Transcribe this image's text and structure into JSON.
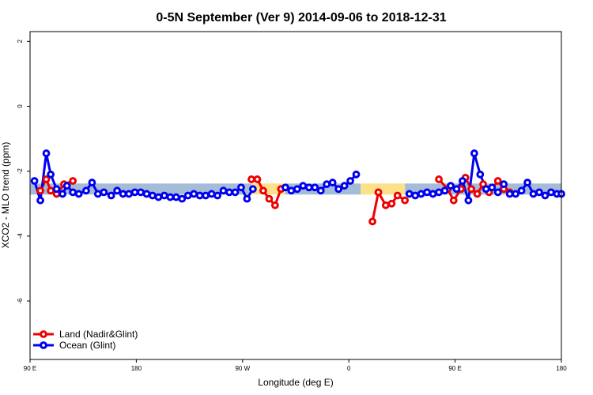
{
  "chart_data": {
    "type": "line",
    "title": "0-5N September (Ver 9)   2014-09-06 to 2018-12-31",
    "xlabel": "Longitude (deg E)",
    "ylabel": "XCO2 - MLO trend (ppm)",
    "xlim": [
      90,
      450
    ],
    "ylim": [
      -7.8,
      2.3
    ],
    "xticks": [
      {
        "value": 90,
        "label": "90 E"
      },
      {
        "value": 162,
        "label": "180"
      },
      {
        "value": 234,
        "label": "90 W"
      },
      {
        "value": 306,
        "label": "0"
      },
      {
        "value": 378,
        "label": "90 E"
      },
      {
        "value": 450,
        "label": "180"
      }
    ],
    "yticks": [
      {
        "value": 2,
        "label": "2"
      },
      {
        "value": 0,
        "label": "0"
      },
      {
        "value": -2,
        "label": "-2"
      },
      {
        "value": -4,
        "label": "-4"
      },
      {
        "value": -6,
        "label": "-6"
      }
    ],
    "grid": false,
    "legend": "bottom-left",
    "colors": {
      "land": "#ee0000",
      "ocean": "#0000ee",
      "band_ocean": "#a4bcd8",
      "band_land": "#fde08a"
    },
    "bands": [
      {
        "x0": 90,
        "x1": 240,
        "type": "ocean"
      },
      {
        "x0": 240,
        "x1": 263,
        "type": "land"
      },
      {
        "x0": 263,
        "x1": 314,
        "type": "ocean"
      },
      {
        "x0": 314,
        "x1": 344,
        "type": "land"
      },
      {
        "x0": 344,
        "x1": 450,
        "type": "ocean"
      }
    ],
    "band_range": [
      -2.72,
      -2.38
    ],
    "series": [
      {
        "name": "Land (Nadir&Glint)",
        "key": "land",
        "x": [
          97,
          101,
          104,
          108,
          113,
          119,
          240,
          244,
          248,
          252,
          256,
          260,
          322,
          326,
          331,
          335,
          339,
          344,
          367,
          373,
          377,
          382,
          385,
          389,
          393,
          397,
          401,
          407,
          411,
          415
        ],
        "y": [
          -2.6,
          -2.25,
          -2.6,
          -2.7,
          -2.4,
          -2.3,
          -2.25,
          -2.25,
          -2.6,
          -2.85,
          -3.05,
          -2.55,
          -3.55,
          -2.65,
          -3.05,
          -3.0,
          -2.75,
          -2.9,
          -2.25,
          -2.55,
          -2.9,
          -2.55,
          -2.2,
          -2.55,
          -2.7,
          -2.4,
          -2.65,
          -2.3,
          -2.55,
          -2.65
        ]
      },
      {
        "name": "Ocean (Glint)",
        "key": "ocean",
        "x": [
          93,
          97,
          101,
          104,
          108,
          112,
          115,
          119,
          123,
          128,
          132,
          136,
          140,
          145,
          149,
          153,
          157,
          161,
          165,
          169,
          173,
          177,
          181,
          185,
          189,
          193,
          197,
          201,
          205,
          209,
          213,
          217,
          221,
          225,
          229,
          233,
          237,
          241,
          263,
          267,
          271,
          275,
          279,
          283,
          287,
          291,
          295,
          299,
          303,
          307,
          311,
          347,
          351,
          355,
          359,
          363,
          367,
          371,
          375,
          379,
          383,
          387,
          391,
          395,
          399,
          403,
          407,
          411,
          415,
          419,
          423,
          427,
          431,
          435,
          439,
          443,
          447,
          450
        ],
        "y": [
          -2.3,
          -2.9,
          -1.45,
          -2.1,
          -2.55,
          -2.7,
          -2.45,
          -2.65,
          -2.7,
          -2.6,
          -2.35,
          -2.7,
          -2.65,
          -2.75,
          -2.6,
          -2.7,
          -2.7,
          -2.65,
          -2.65,
          -2.7,
          -2.75,
          -2.8,
          -2.75,
          -2.8,
          -2.8,
          -2.85,
          -2.75,
          -2.7,
          -2.75,
          -2.75,
          -2.7,
          -2.75,
          -2.6,
          -2.65,
          -2.65,
          -2.5,
          -2.85,
          -2.55,
          -2.5,
          -2.6,
          -2.55,
          -2.45,
          -2.5,
          -2.5,
          -2.6,
          -2.4,
          -2.35,
          -2.55,
          -2.45,
          -2.3,
          -2.1,
          -2.7,
          -2.75,
          -2.7,
          -2.65,
          -2.7,
          -2.65,
          -2.6,
          -2.45,
          -2.55,
          -2.3,
          -2.9,
          -1.45,
          -2.1,
          -2.55,
          -2.5,
          -2.65,
          -2.4,
          -2.7,
          -2.7,
          -2.6,
          -2.35,
          -2.7,
          -2.65,
          -2.75,
          -2.65,
          -2.7,
          -2.7
        ]
      }
    ]
  }
}
